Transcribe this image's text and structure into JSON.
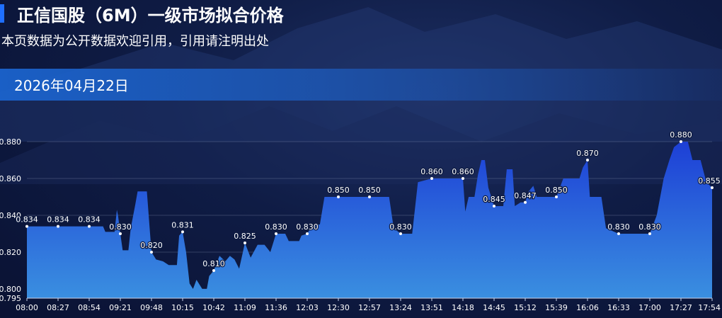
{
  "header": {
    "title": "正信国股（6M）一级市场拟合价格",
    "subtitle": "本页数据为公开数据欢迎引用，引用请注明出处",
    "date": "2026年04月22日"
  },
  "colors": {
    "accent": "#1f6fff",
    "area_top": "#1d3fd6",
    "area_bottom": "#3a8fe0",
    "grid": "#9aa6c4"
  },
  "chart_data": {
    "type": "area",
    "xlabel": "",
    "ylabel": "",
    "ylim": [
      0.795,
      0.885
    ],
    "yticks": [
      "0.795",
      "0.800",
      "0.820",
      "0.840",
      "0.860",
      "0.880"
    ],
    "xticks": [
      "08:00",
      "08:27",
      "08:54",
      "09:21",
      "09:48",
      "10:15",
      "10:42",
      "11:09",
      "11:36",
      "12:03",
      "12:30",
      "12:57",
      "13:24",
      "13:51",
      "14:18",
      "14:45",
      "15:12",
      "15:39",
      "16:06",
      "16:33",
      "17:00",
      "17:27",
      "17:54"
    ],
    "grid": true,
    "series": [
      {
        "values": [
          [
            "08:00",
            0.834
          ],
          [
            "08:27",
            0.834
          ],
          [
            "08:54",
            0.834
          ],
          [
            "09:06",
            0.834
          ],
          [
            "09:08",
            0.831
          ],
          [
            "09:16",
            0.831
          ],
          [
            "09:18",
            0.843
          ],
          [
            "09:19",
            0.84
          ],
          [
            "09:21",
            0.83
          ],
          [
            "09:23",
            0.821
          ],
          [
            "09:28",
            0.821
          ],
          [
            "09:30",
            0.833
          ],
          [
            "09:34",
            0.846
          ],
          [
            "09:36",
            0.853
          ],
          [
            "09:44",
            0.853
          ],
          [
            "09:47",
            0.828
          ],
          [
            "09:48",
            0.82
          ],
          [
            "09:52",
            0.816
          ],
          [
            "09:58",
            0.815
          ],
          [
            "10:03",
            0.813
          ],
          [
            "10:10",
            0.813
          ],
          [
            "10:12",
            0.829
          ],
          [
            "10:15",
            0.831
          ],
          [
            "10:18",
            0.82
          ],
          [
            "10:21",
            0.803
          ],
          [
            "10:24",
            0.8
          ],
          [
            "10:27",
            0.805
          ],
          [
            "10:32",
            0.8
          ],
          [
            "10:36",
            0.8
          ],
          [
            "10:38",
            0.807
          ],
          [
            "10:42",
            0.81
          ],
          [
            "10:47",
            0.818
          ],
          [
            "10:52",
            0.815
          ],
          [
            "10:56",
            0.818
          ],
          [
            "11:00",
            0.816
          ],
          [
            "11:04",
            0.811
          ],
          [
            "11:09",
            0.825
          ],
          [
            "11:14",
            0.817
          ],
          [
            "11:20",
            0.824
          ],
          [
            "11:26",
            0.824
          ],
          [
            "11:31",
            0.82
          ],
          [
            "11:36",
            0.83
          ],
          [
            "11:44",
            0.83
          ],
          [
            "11:47",
            0.826
          ],
          [
            "11:56",
            0.826
          ],
          [
            "11:58",
            0.829
          ],
          [
            "12:03",
            0.83
          ],
          [
            "12:08",
            0.835
          ],
          [
            "12:14",
            0.835
          ],
          [
            "12:18",
            0.85
          ],
          [
            "12:30",
            0.85
          ],
          [
            "12:57",
            0.85
          ],
          [
            "13:14",
            0.85
          ],
          [
            "13:18",
            0.833
          ],
          [
            "13:24",
            0.83
          ],
          [
            "13:34",
            0.83
          ],
          [
            "13:39",
            0.858
          ],
          [
            "13:51",
            0.86
          ],
          [
            "14:18",
            0.86
          ],
          [
            "14:20",
            0.842
          ],
          [
            "14:23",
            0.85
          ],
          [
            "14:28",
            0.85
          ],
          [
            "14:31",
            0.862
          ],
          [
            "14:34",
            0.87
          ],
          [
            "14:37",
            0.87
          ],
          [
            "14:40",
            0.855
          ],
          [
            "14:45",
            0.845
          ],
          [
            "14:53",
            0.845
          ],
          [
            "14:56",
            0.865
          ],
          [
            "15:01",
            0.865
          ],
          [
            "15:03",
            0.845
          ],
          [
            "15:08",
            0.847
          ],
          [
            "15:12",
            0.847
          ],
          [
            "15:15",
            0.853
          ],
          [
            "15:19",
            0.856
          ],
          [
            "15:22",
            0.85
          ],
          [
            "15:39",
            0.85
          ],
          [
            "15:45",
            0.86
          ],
          [
            "15:59",
            0.86
          ],
          [
            "16:02",
            0.866
          ],
          [
            "16:06",
            0.87
          ],
          [
            "16:08",
            0.85
          ],
          [
            "16:18",
            0.85
          ],
          [
            "16:22",
            0.833
          ],
          [
            "16:33",
            0.83
          ],
          [
            "17:00",
            0.83
          ],
          [
            "17:06",
            0.84
          ],
          [
            "17:12",
            0.86
          ],
          [
            "17:17",
            0.87
          ],
          [
            "17:21",
            0.877
          ],
          [
            "17:27",
            0.88
          ],
          [
            "17:33",
            0.88
          ],
          [
            "17:37",
            0.87
          ],
          [
            "17:44",
            0.87
          ],
          [
            "17:49",
            0.858
          ],
          [
            "17:54",
            0.855
          ]
        ]
      }
    ],
    "labels": [
      {
        "x": "08:00",
        "y": 0.834,
        "text": "0.834"
      },
      {
        "x": "08:27",
        "y": 0.834,
        "text": "0.834"
      },
      {
        "x": "08:54",
        "y": 0.834,
        "text": "0.834"
      },
      {
        "x": "09:21",
        "y": 0.83,
        "text": "0.830"
      },
      {
        "x": "09:48",
        "y": 0.82,
        "text": "0.820"
      },
      {
        "x": "10:15",
        "y": 0.831,
        "text": "0.831"
      },
      {
        "x": "10:42",
        "y": 0.81,
        "text": "0.810"
      },
      {
        "x": "11:09",
        "y": 0.825,
        "text": "0.825"
      },
      {
        "x": "11:36",
        "y": 0.83,
        "text": "0.830"
      },
      {
        "x": "12:03",
        "y": 0.83,
        "text": "0.830"
      },
      {
        "x": "12:30",
        "y": 0.85,
        "text": "0.850"
      },
      {
        "x": "12:57",
        "y": 0.85,
        "text": "0.850"
      },
      {
        "x": "13:24",
        "y": 0.83,
        "text": "0.830"
      },
      {
        "x": "13:51",
        "y": 0.86,
        "text": "0.860"
      },
      {
        "x": "14:18",
        "y": 0.86,
        "text": "0.860"
      },
      {
        "x": "14:45",
        "y": 0.845,
        "text": "0.845"
      },
      {
        "x": "15:12",
        "y": 0.847,
        "text": "0.847"
      },
      {
        "x": "15:39",
        "y": 0.85,
        "text": "0.850"
      },
      {
        "x": "16:06",
        "y": 0.87,
        "text": "0.870"
      },
      {
        "x": "16:33",
        "y": 0.83,
        "text": "0.830"
      },
      {
        "x": "17:00",
        "y": 0.83,
        "text": "0.830"
      },
      {
        "x": "17:27",
        "y": 0.88,
        "text": "0.880"
      },
      {
        "x": "17:54",
        "y": 0.855,
        "text": "0.855"
      }
    ]
  }
}
